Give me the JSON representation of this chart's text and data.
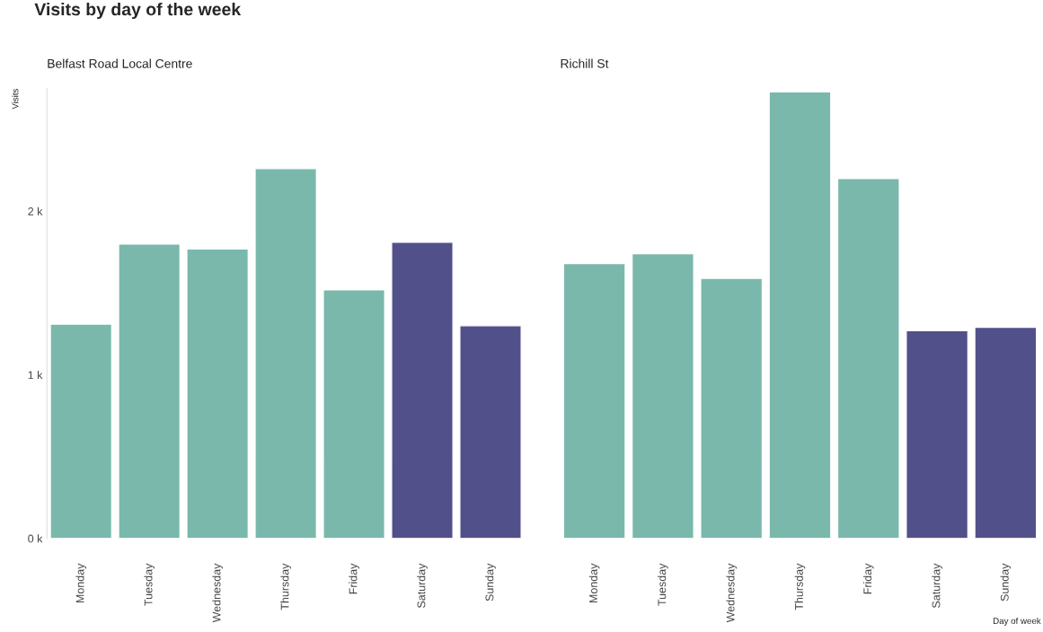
{
  "chart_data": [
    {
      "type": "bar",
      "title": "Visits by day of the week",
      "subtitle": "Belfast Road Local Centre",
      "ylabel": "Visits",
      "categories": [
        "Monday",
        "Tuesday",
        "Wednesday",
        "Thursday",
        "Friday",
        "Saturday",
        "Sunday"
      ],
      "values": [
        1.31,
        1.8,
        1.77,
        2.26,
        1.52,
        1.81,
        1.3
      ],
      "colors": [
        "#7ab8ac",
        "#7ab8ac",
        "#7ab8ac",
        "#7ab8ac",
        "#7ab8ac",
        "#52508a",
        "#52508a"
      ],
      "ylim": [
        0,
        2.75
      ],
      "yticks": [
        {
          "value": 0,
          "label": "0 k"
        },
        {
          "value": 1,
          "label": "1 k"
        },
        {
          "value": 2,
          "label": "2 k"
        }
      ],
      "grid": false,
      "legend": false
    },
    {
      "type": "bar",
      "subtitle": "Richill St",
      "xlabel": "Day of week",
      "categories": [
        "Monday",
        "Tuesday",
        "Wednesday",
        "Thursday",
        "Friday",
        "Saturday",
        "Sunday"
      ],
      "values": [
        1.68,
        1.74,
        1.59,
        2.73,
        2.2,
        1.27,
        1.29
      ],
      "colors": [
        "#7ab8ac",
        "#7ab8ac",
        "#7ab8ac",
        "#7ab8ac",
        "#7ab8ac",
        "#52508a",
        "#52508a"
      ],
      "ylim": [
        0,
        2.75
      ],
      "tick_labels": "x",
      "grid": false,
      "legend": false
    }
  ]
}
